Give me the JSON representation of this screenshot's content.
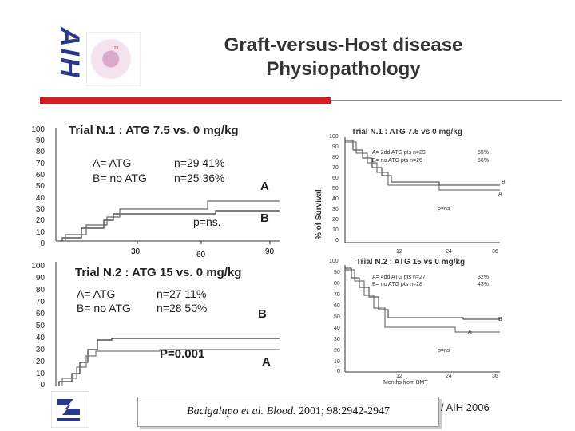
{
  "header": {
    "logo_text": "AIH",
    "cell_caption": "123",
    "title_line1": "Graft-versus-Host disease",
    "title_line2": "Physiopathology"
  },
  "left_top": {
    "y_ticks": [
      "100",
      "90",
      "80",
      "70",
      "60",
      "50",
      "40",
      "30",
      "20",
      "10",
      "0"
    ],
    "title": "Trial N.1 : ATG 7.5  vs. 0 mg/kg",
    "legend_a": "A= ATG",
    "legend_a_stat": "n=29  41%",
    "legend_b": "B= no ATG",
    "legend_b_stat": "n=25  36%",
    "label_a": "A",
    "label_b": "B",
    "p_value": "p=ns.",
    "x_ticks": [
      "30",
      "60",
      "90"
    ]
  },
  "left_bottom": {
    "y_ticks": [
      "100",
      "90",
      "80",
      "70",
      "60",
      "50",
      "40",
      "30",
      "20",
      "10",
      "0"
    ],
    "title": "Trial N.2 : ATG 15 vs. 0 mg/kg",
    "legend_a": "A= ATG",
    "legend_a_stat": "n=27  11%",
    "legend_b": "B= no ATG",
    "legend_b_stat": "n=28  50%",
    "label_b": "B",
    "label_a": "A",
    "p_value": "P=0.001"
  },
  "right": {
    "ylabel": "% of Survival",
    "xlabel": "Months from BMT",
    "top": {
      "title": "Trial N.1 : ATG 7.5  vs 0 mg/kg",
      "y_ticks": [
        "100",
        "90",
        "80",
        "70",
        "60",
        "50",
        "40",
        "30",
        "20",
        "10",
        "0"
      ],
      "legend_a": "A= 2dd ATG pts  n=29",
      "legend_a_pct": "55%",
      "legend_b": "B= no ATG pts    n=25",
      "legend_b_pct": "56%",
      "label_b": "B",
      "label_a": "A",
      "p_value": "p=ns",
      "x_ticks": [
        "12",
        "24",
        "36"
      ]
    },
    "bottom": {
      "title": "Trial N.2 : ATG 15  vs 0 mg/kg",
      "y_ticks": [
        "100",
        "90",
        "80",
        "70",
        "60",
        "50",
        "40",
        "30",
        "20",
        "10",
        "0"
      ],
      "legend_a": "A= 4dd ATG pts   n=27",
      "legend_a_pct": "32%",
      "legend_b": "B= no ATG pts    n=28",
      "legend_b_pct": "43%",
      "label_b": "B",
      "label_a": "A",
      "p_value": "p=ns",
      "x_ticks": [
        "12",
        "24",
        "36"
      ]
    }
  },
  "citation": {
    "authors": "Bacigalupo et al. ",
    "journal": "Blood.",
    "ref": " 2001; 98:2942-2947"
  },
  "footer": {
    "text": "/ AIH 2006"
  },
  "colors": {
    "accent_red": "#d51f1f",
    "logo_blue": "#2a3a8a"
  }
}
